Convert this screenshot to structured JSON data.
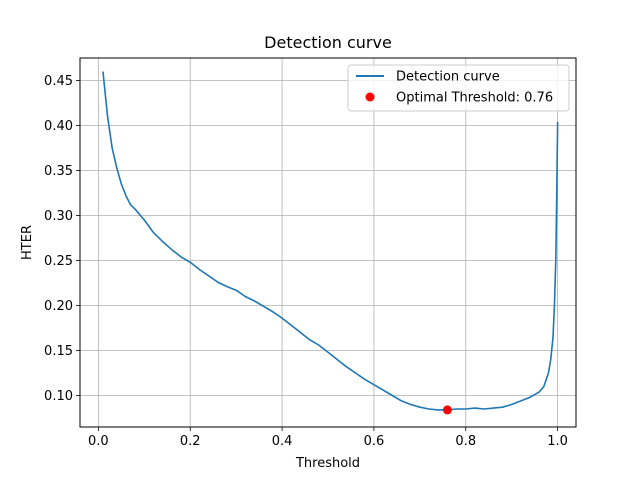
{
  "chart_data": {
    "type": "line",
    "title": "Detection curve",
    "xlabel": "Threshold",
    "ylabel": "HTER",
    "xlim": [
      -0.04,
      1.04
    ],
    "ylim": [
      0.065,
      0.475
    ],
    "xticks": [
      0.0,
      0.2,
      0.4,
      0.6,
      0.8,
      1.0
    ],
    "xtick_labels": [
      "0.0",
      "0.2",
      "0.4",
      "0.6",
      "0.8",
      "1.0"
    ],
    "yticks": [
      0.1,
      0.15,
      0.2,
      0.25,
      0.3,
      0.35,
      0.4,
      0.45
    ],
    "ytick_labels": [
      "0.10",
      "0.15",
      "0.20",
      "0.25",
      "0.30",
      "0.35",
      "0.40",
      "0.45"
    ],
    "grid": true,
    "legend_position": "top-right",
    "series": [
      {
        "name": "Detection curve",
        "color": "#1f77b4",
        "x": [
          0.01,
          0.02,
          0.03,
          0.04,
          0.05,
          0.06,
          0.07,
          0.08,
          0.1,
          0.12,
          0.14,
          0.16,
          0.18,
          0.2,
          0.22,
          0.24,
          0.26,
          0.28,
          0.3,
          0.32,
          0.34,
          0.36,
          0.38,
          0.4,
          0.42,
          0.44,
          0.46,
          0.48,
          0.5,
          0.52,
          0.54,
          0.56,
          0.58,
          0.6,
          0.62,
          0.64,
          0.66,
          0.68,
          0.7,
          0.72,
          0.74,
          0.76,
          0.78,
          0.8,
          0.82,
          0.84,
          0.86,
          0.88,
          0.9,
          0.92,
          0.94,
          0.96,
          0.97,
          0.98,
          0.985,
          0.99,
          0.993,
          0.996,
          0.998,
          1.0
        ],
        "y": [
          0.46,
          0.41,
          0.375,
          0.353,
          0.335,
          0.322,
          0.312,
          0.307,
          0.295,
          0.281,
          0.271,
          0.262,
          0.254,
          0.248,
          0.24,
          0.233,
          0.226,
          0.221,
          0.217,
          0.21,
          0.205,
          0.199,
          0.193,
          0.186,
          0.178,
          0.17,
          0.162,
          0.156,
          0.148,
          0.14,
          0.132,
          0.125,
          0.118,
          0.112,
          0.106,
          0.1,
          0.094,
          0.09,
          0.087,
          0.085,
          0.084,
          0.084,
          0.085,
          0.085,
          0.086,
          0.085,
          0.086,
          0.087,
          0.09,
          0.094,
          0.098,
          0.104,
          0.11,
          0.125,
          0.14,
          0.165,
          0.2,
          0.25,
          0.32,
          0.404
        ]
      }
    ],
    "markers": [
      {
        "name": "Optimal Threshold: 0.76",
        "color": "#ff0000",
        "x": 0.76,
        "y": 0.084
      }
    ]
  }
}
